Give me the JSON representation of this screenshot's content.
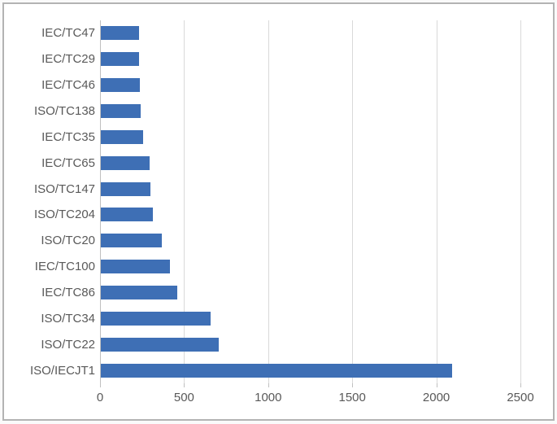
{
  "window": {
    "background": "#ffffff",
    "border_color": "#b3b3b3"
  },
  "chart_data": {
    "type": "bar",
    "orientation": "horizontal",
    "title": "",
    "xlabel": "",
    "ylabel": "",
    "legend": "none",
    "grid": "vertical-major-gridlines",
    "categories": [
      "IEC/TC47",
      "IEC/TC29",
      "IEC/TC46",
      "ISO/TC138",
      "IEC/TC35",
      "IEC/TC65",
      "ISO/TC147",
      "ISO/TC204",
      "ISO/TC20",
      "IEC/TC100",
      "IEC/TC86",
      "ISO/TC34",
      "ISO/TC22",
      "ISO/IECJT1"
    ],
    "categories_order": "top-to-bottom",
    "values": [
      225,
      225,
      230,
      235,
      250,
      290,
      295,
      310,
      365,
      410,
      455,
      655,
      700,
      2090
    ],
    "x_ticks": [
      0,
      500,
      1000,
      1500,
      2000,
      2500
    ],
    "x_tick_labels": [
      "0",
      "500",
      "1000",
      "1500",
      "2000",
      "2500"
    ],
    "xlim": [
      0,
      2500
    ],
    "colors": {
      "bar": "#3e6fb5",
      "gridline": "#d9d9d9",
      "axis_line": "#c0c0c0",
      "tick_mark": "#c0c0c0",
      "label_text": "#595959"
    }
  }
}
